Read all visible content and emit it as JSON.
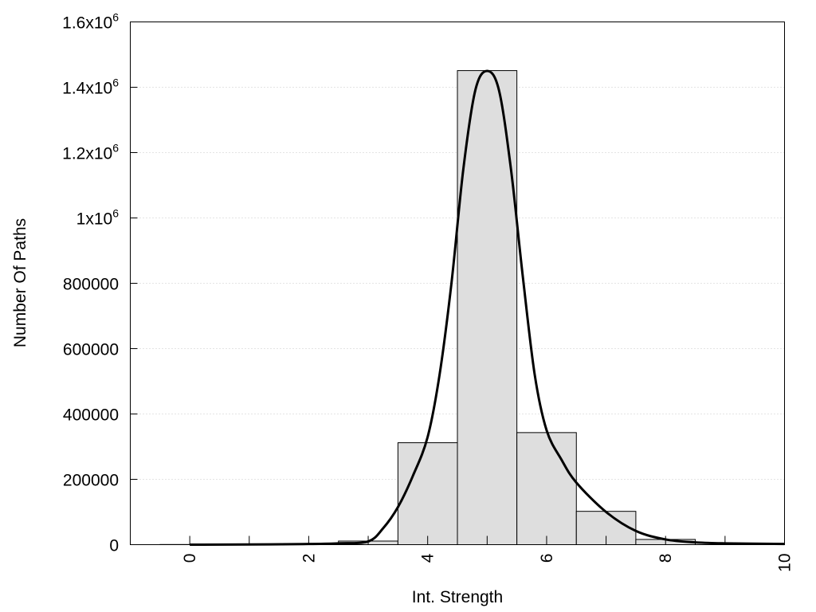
{
  "chart_data": {
    "type": "bar",
    "title": "",
    "xlabel": "Int. Strength",
    "ylabel": "Number Of Paths",
    "xlim": [
      -1,
      10
    ],
    "ylim": [
      0,
      1600000
    ],
    "grid": true,
    "x_ticks": [
      0,
      2,
      4,
      6,
      8,
      10
    ],
    "x_tick_labels": [
      "0",
      "2",
      "4",
      "6",
      "8",
      "10"
    ],
    "y_ticks": [
      {
        "value": 0,
        "label": "0"
      },
      {
        "value": 200000,
        "label": "200000"
      },
      {
        "value": 400000,
        "label": "400000"
      },
      {
        "value": 600000,
        "label": "600000"
      },
      {
        "value": 800000,
        "label": "800000"
      },
      {
        "value": 1000000,
        "label": "1x10",
        "exp": "6"
      },
      {
        "value": 1200000,
        "label": "1.2x10",
        "exp": "6"
      },
      {
        "value": 1400000,
        "label": "1.4x10",
        "exp": "6"
      },
      {
        "value": 1600000,
        "label": "1.6x10",
        "exp": "6"
      }
    ],
    "bars": {
      "x": [
        0,
        1,
        2,
        3,
        4,
        5,
        6,
        7,
        8
      ],
      "values": [
        500,
        500,
        1000,
        11000,
        312000,
        1451000,
        343000,
        102000,
        16000
      ],
      "width": 1,
      "color": "#dedede"
    },
    "curve": {
      "x": [
        0,
        1,
        2,
        2.5,
        3,
        3.25,
        3.5,
        3.75,
        4,
        4.2,
        4.4,
        4.6,
        4.8,
        5,
        5.2,
        5.4,
        5.6,
        5.8,
        6,
        6.25,
        6.5,
        7,
        7.5,
        8,
        8.5,
        9,
        10
      ],
      "values": [
        0,
        500,
        2000,
        4000,
        10000,
        50000,
        115000,
        210000,
        330000,
        520000,
        800000,
        1150000,
        1390000,
        1450000,
        1390000,
        1150000,
        820000,
        520000,
        350000,
        260000,
        190000,
        100000,
        42000,
        16000,
        7000,
        4000,
        2000
      ],
      "color": "#000000"
    }
  }
}
